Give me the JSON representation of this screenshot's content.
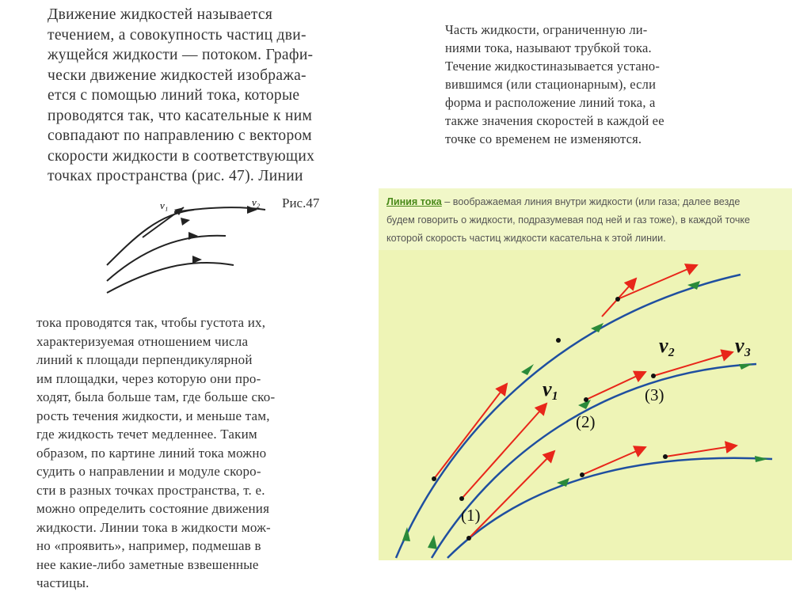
{
  "left_top": {
    "lines": [
      "Движение жидкостей называется",
      "течением, а совокупность частиц дви-",
      "жущейся жидкости — потоком. Графи-",
      "чески движение жидкостей изобража-",
      "ется с помощью линий тока, которые",
      "проводятся так, что касательные к ним",
      "совпадают по направлению с вектором",
      "скорости жидкости в соответствующих",
      "точках пространства (рис. 47). Линии"
    ]
  },
  "figure47": {
    "caption": "Рис.47",
    "v1": "v₁",
    "v2": "v₂"
  },
  "left_bottom": {
    "lines": [
      "тока проводятся так, чтобы густота их,",
      "характеризуемая отношением числа",
      "линий к площади перпендикулярной",
      "им площадки, через которую они про-",
      "ходят, была больше там, где больше ско-",
      "рость течения жидкости, и меньше там,",
      "где жидкость течет медленнее. Таким",
      "образом, по картине линий тока можно",
      "судить о направлении и модуле скоро-",
      "сти в разных точках пространства, т. е.",
      "можно определить состояние движения",
      "жидкости. Линии тока в жидкости мож-",
      "но «проявить», например, подмешав в",
      "нее какие-либо заметные взвешенные",
      "частицы."
    ]
  },
  "right_top": {
    "lines": [
      "Часть жидкости, ограниченную ли-",
      "ниями тока, называют трубкой тока.",
      "Течение жидкостиназывается устано-",
      "вившимся (или стационарным), если",
      "форма и расположение линий тока, а",
      "также значения скоростей в каждой ее",
      "точке со временем не изменяются."
    ]
  },
  "panel": {
    "title": "Линия тока",
    "lines": [
      " – воображаемая линия внутри жидкости (или газа; далее везде",
      "будем говорить о жидкости, подразумевая под ней и газ тоже), в каждой точке",
      "которой скорость частиц жидкости касательна к этой линии."
    ],
    "labels": {
      "v1": "v₁",
      "v2": "v₂",
      "v3": "v₃",
      "p1": "(1)",
      "p2": "(2)",
      "p3": "(3)"
    }
  }
}
